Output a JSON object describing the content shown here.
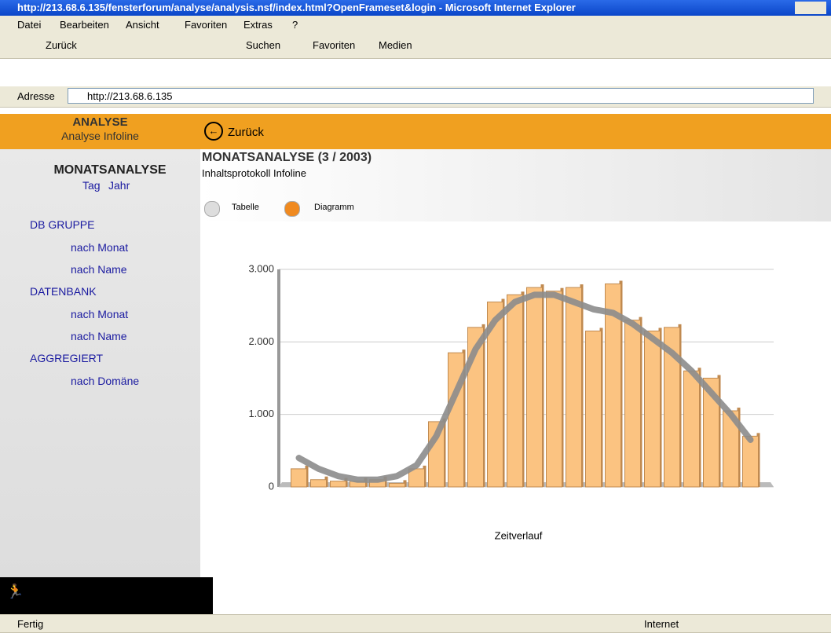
{
  "window": {
    "title": "http://213.68.6.135/fensterforum/analyse/analysis.nsf/index.html?OpenFrameset&login - Microsoft Internet Explorer"
  },
  "menu": [
    "Datei",
    "Bearbeiten",
    "Ansicht",
    "Favoriten",
    "Extras",
    "?"
  ],
  "toolbar": [
    "Zurück",
    "Suchen",
    "Favoriten",
    "Medien"
  ],
  "address": {
    "label": "Adresse",
    "url": "http://213.68.6.135"
  },
  "sidebar": {
    "header": "ANALYSE",
    "subheader": "Analyse Infoline",
    "title": "MONATSANALYSE",
    "links": [
      "Tag",
      "Jahr"
    ],
    "groups": [
      {
        "label": "DB GRUPPE",
        "items": [
          "nach Monat",
          "nach Name"
        ]
      },
      {
        "label": "DATENBANK",
        "items": [
          "nach Monat",
          "nach Name"
        ]
      },
      {
        "label": "AGGREGIERT",
        "items": [
          "nach Domäne"
        ]
      }
    ]
  },
  "back": "Zurück",
  "content": {
    "title": "MONATSANALYSE (3 / 2003)",
    "subtitle": "Inhaltsprotokoll Infoline",
    "tabs": [
      "Tabelle",
      "Diagramm"
    ]
  },
  "chart_data": {
    "type": "bar",
    "x_label": "Zeitverlauf",
    "categories": [
      null,
      null,
      null,
      null,
      null,
      null,
      null,
      null,
      null,
      null,
      null,
      null,
      null,
      null,
      null,
      null,
      null,
      null,
      null,
      null,
      null,
      null,
      null,
      null
    ],
    "values": [
      250,
      100,
      80,
      80,
      100,
      50,
      250,
      900,
      1850,
      2200,
      2550,
      2650,
      2750,
      2700,
      2750,
      2150,
      2800,
      2300,
      2150,
      2200,
      1600,
      1500,
      1050,
      700
    ],
    "color": "#fbc381",
    "trend": {
      "color": "#8c8c8c",
      "values": [
        400,
        250,
        150,
        100,
        100,
        150,
        300,
        700,
        1300,
        1900,
        2300,
        2550,
        2650,
        2650,
        2550,
        2450,
        2400,
        2250,
        2050,
        1850,
        1600,
        1300,
        1000,
        650
      ]
    },
    "ylim": [
      0,
      3000
    ],
    "yticks": [
      0,
      {
        "value": 1000,
        "label": "1.000"
      },
      {
        "value": 2000,
        "label": "2.000"
      },
      {
        "value": 3000,
        "label": "3.000"
      }
    ],
    "grid": true
  },
  "status": {
    "text": "Fertig",
    "zone": "Internet"
  }
}
